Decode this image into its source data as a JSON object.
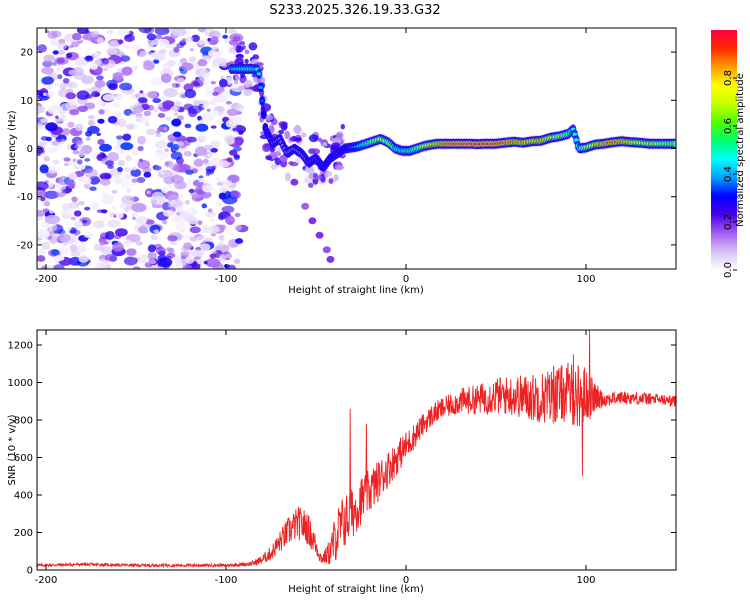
{
  "title": "S233.2025.326.19.33.G32",
  "chart_data": [
    {
      "type": "heatmap",
      "xlabel": "Height of straight line (km)",
      "ylabel": "Frequency (Hz)",
      "xlim": [
        -205,
        150
      ],
      "ylim": [
        -25,
        25
      ],
      "xticks": [
        -200,
        -100,
        0,
        100
      ],
      "xtick_labels": [
        "-200",
        "-100",
        "0",
        "100"
      ],
      "yticks": [
        -20,
        -10,
        0,
        10,
        20
      ],
      "ytick_labels": [
        "-20",
        "-10",
        "0",
        "10",
        "20"
      ],
      "noise_region": {
        "x_from": -205,
        "x_to": -95,
        "y_from": -25,
        "y_to": 25
      },
      "ridge": {
        "x": [
          -97,
          -90,
          -85,
          -82,
          -78,
          -74,
          -70,
          -66,
          -62,
          -58,
          -54,
          -50,
          -46,
          -42,
          -38,
          -34,
          -30,
          -26,
          -22,
          -18,
          -14,
          -10,
          -6,
          -2,
          2,
          6,
          10,
          14,
          18,
          22,
          26,
          30,
          35,
          40,
          45,
          50,
          55,
          60,
          65,
          70,
          75,
          80,
          85,
          90,
          93,
          96,
          100,
          105,
          110,
          115,
          120,
          125,
          130,
          135,
          140,
          145,
          150
        ],
        "y": [
          16.5,
          16.5,
          16.5,
          16.4,
          4,
          1,
          2,
          -1,
          0,
          -1,
          -3,
          -2,
          -4,
          -2,
          -1,
          0,
          0.2,
          0.5,
          1,
          1.5,
          2,
          1.3,
          0,
          -0.5,
          -0.5,
          0,
          0.5,
          0.8,
          1,
          1,
          1,
          1,
          1,
          0.9,
          1,
          1,
          1.2,
          1.4,
          1.2,
          1.5,
          1.6,
          2.2,
          2.5,
          3,
          4,
          0,
          0.2,
          0.8,
          1,
          1.3,
          1.5,
          1.3,
          1.2,
          1,
          1,
          1,
          1
        ],
        "amplitude": [
          0.45,
          0.5,
          0.5,
          0.45,
          0.25,
          0.2,
          0.15,
          0.15,
          0.15,
          0.15,
          0.2,
          0.2,
          0.25,
          0.3,
          0.2,
          0.3,
          0.35,
          0.45,
          0.55,
          0.65,
          0.7,
          0.65,
          0.55,
          0.5,
          0.55,
          0.6,
          0.75,
          0.8,
          0.85,
          0.9,
          0.92,
          0.95,
          0.97,
          1.0,
          0.97,
          0.95,
          0.9,
          0.88,
          0.85,
          0.8,
          0.85,
          0.75,
          0.7,
          0.6,
          0.45,
          0.5,
          0.7,
          0.8,
          0.85,
          0.9,
          0.85,
          0.8,
          0.75,
          0.7,
          0.7,
          0.65,
          0.6
        ]
      },
      "secondary_trace": {
        "x": [
          -68,
          -62,
          -56,
          -52,
          -48,
          -44,
          -42
        ],
        "y": [
          -2,
          -7,
          -12,
          -15,
          -18,
          -21,
          -23
        ],
        "amplitude": 0.15
      },
      "colorbar": {
        "label": "Normalized spectral amplitude",
        "range": [
          0,
          1
        ],
        "ticks": [
          0.0,
          0.2,
          0.4,
          0.6,
          0.8
        ],
        "tick_labels": [
          "0.0",
          "0.2",
          "0.4",
          "0.6",
          "0.8"
        ],
        "colors": [
          "#ffffff",
          "#d6c2f5",
          "#a35cf0",
          "#4a00e6",
          "#0000ff",
          "#00a0ff",
          "#00ffff",
          "#00ff70",
          "#4cff00",
          "#c8ff00",
          "#ffff00",
          "#ff9a00",
          "#ff2a00",
          "#ff0040"
        ]
      }
    },
    {
      "type": "line",
      "xlabel": "Height of straight line (km)",
      "ylabel": "SNR (10 * v/v)",
      "xlim": [
        -205,
        150
      ],
      "ylim": [
        0,
        1280
      ],
      "xticks": [
        -200,
        -100,
        0,
        100
      ],
      "xtick_labels": [
        "-200",
        "-100",
        "0",
        "100"
      ],
      "yticks": [
        0,
        200,
        400,
        600,
        800,
        1000,
        1200
      ],
      "ytick_labels": [
        "0",
        "200",
        "400",
        "600",
        "800",
        "1000",
        "1200"
      ],
      "line_color": "#ee2222",
      "series": [
        {
          "name": "SNR",
          "x": [
            -205,
            -180,
            -150,
            -120,
            -100,
            -90,
            -85,
            -80,
            -75,
            -70,
            -65,
            -60,
            -55,
            -50,
            -47,
            -45,
            -42,
            -40,
            -38,
            -35,
            -30,
            -25,
            -20,
            -15,
            -10,
            -5,
            0,
            5,
            10,
            15,
            20,
            25,
            30,
            40,
            50,
            60,
            70,
            80,
            90,
            95,
            100,
            105,
            110,
            120,
            130,
            140,
            150
          ],
          "y": [
            25,
            30,
            25,
            25,
            25,
            30,
            35,
            55,
            90,
            150,
            210,
            250,
            230,
            130,
            60,
            70,
            100,
            150,
            200,
            250,
            300,
            370,
            420,
            480,
            540,
            600,
            660,
            720,
            780,
            830,
            860,
            880,
            900,
            910,
            930,
            930,
            920,
            925,
            950,
            930,
            930,
            920,
            910,
            920,
            915,
            910,
            900
          ],
          "noise_amplitude": [
            8,
            8,
            8,
            8,
            8,
            10,
            15,
            25,
            40,
            60,
            80,
            90,
            90,
            60,
            30,
            40,
            80,
            120,
            140,
            150,
            140,
            130,
            120,
            110,
            100,
            90,
            80,
            70,
            60,
            60,
            60,
            60,
            70,
            80,
            100,
            110,
            130,
            150,
            160,
            180,
            160,
            80,
            40,
            35,
            35,
            30,
            30
          ]
        }
      ],
      "spikes": [
        {
          "x": -31,
          "y": 860
        },
        {
          "x": -22,
          "y": 780
        },
        {
          "x": 82,
          "y": 1090
        },
        {
          "x": 93,
          "y": 1150
        },
        {
          "x": 98,
          "y": 500
        },
        {
          "x": 102,
          "y": 1280
        }
      ]
    }
  ]
}
